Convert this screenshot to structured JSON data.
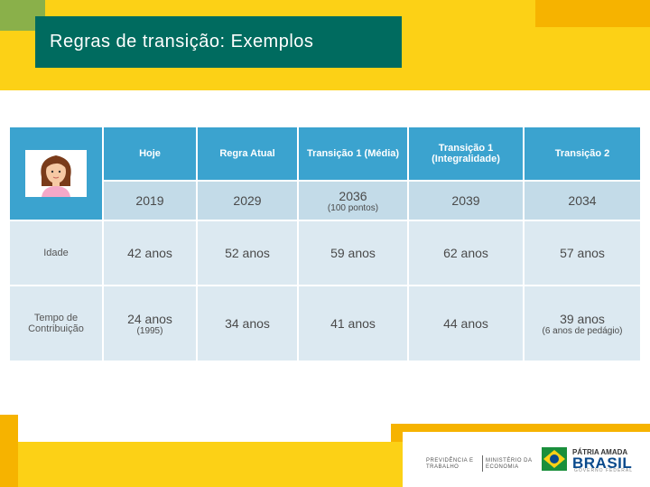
{
  "title": "Regras de transição: Exemplos",
  "table": {
    "columns": [
      "Hoje",
      "Regra Atual",
      "Transição 1 (Média)",
      "Transição 1 (Integralidade)",
      "Transição 2"
    ],
    "years": [
      {
        "main": "2019",
        "sub": ""
      },
      {
        "main": "2029",
        "sub": ""
      },
      {
        "main": "2036",
        "sub": "(100 pontos)"
      },
      {
        "main": "2039",
        "sub": ""
      },
      {
        "main": "2034",
        "sub": ""
      }
    ],
    "rows": [
      {
        "label": "Idade",
        "cells": [
          {
            "main": "42 anos",
            "sub": ""
          },
          {
            "main": "52 anos",
            "sub": ""
          },
          {
            "main": "59 anos",
            "sub": ""
          },
          {
            "main": "62 anos",
            "sub": ""
          },
          {
            "main": "57 anos",
            "sub": ""
          }
        ]
      },
      {
        "label": "Tempo de Contribuição",
        "cells": [
          {
            "main": "24 anos",
            "sub": "(1995)"
          },
          {
            "main": "34 anos",
            "sub": ""
          },
          {
            "main": "41 anos",
            "sub": ""
          },
          {
            "main": "44 anos",
            "sub": ""
          },
          {
            "main": "39 anos",
            "sub": "(6 anos de pedágio)"
          }
        ]
      }
    ]
  },
  "footer": {
    "ministry_left": "PREVIDÊNCIA E TRABALHO",
    "ministry_right": "MINISTÉRIO DA ECONOMIA",
    "brand_top": "PÁTRIA AMADA",
    "brand_main": "BRASIL",
    "brand_sub": "GOVERNO FEDERAL"
  },
  "colors": {
    "yellow": "#fcd116",
    "orange": "#f6b300",
    "green": "#8ab04a",
    "title_bg": "#006b5f",
    "header_blue": "#3ba3cf",
    "year_row": "#c3dbe8",
    "body_row": "#dce9f1"
  },
  "icons": [
    "woman-avatar-icon",
    "brasil-flag-logo-icon"
  ]
}
